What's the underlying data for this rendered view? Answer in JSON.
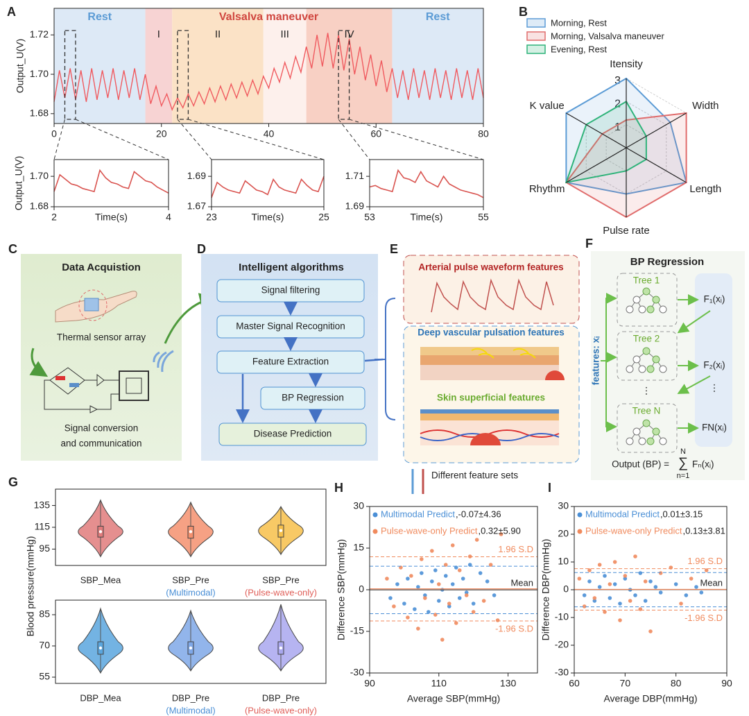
{
  "panel_labels": [
    "A",
    "B",
    "C",
    "D",
    "E",
    "F",
    "G",
    "H",
    "I"
  ],
  "chart_data": [
    {
      "type": "line",
      "ylabel": "Output_U(V)",
      "color": "#f05a5f",
      "x": [
        0,
        1,
        2,
        3,
        4,
        5,
        6,
        7,
        8,
        9,
        10,
        11,
        12,
        13,
        14,
        15,
        16,
        17,
        18,
        19,
        20,
        21,
        22,
        23,
        24,
        25,
        26,
        27,
        28,
        29,
        30,
        31,
        32,
        33,
        34,
        35,
        36,
        37,
        38,
        39,
        40,
        41,
        42,
        43,
        44,
        45,
        46,
        47,
        48,
        49,
        50,
        51,
        52,
        53,
        54,
        55,
        56,
        57,
        58,
        59,
        60,
        61,
        62,
        63,
        64,
        65,
        66,
        67,
        68,
        69,
        70,
        71,
        72,
        73,
        74,
        75,
        76,
        77,
        78,
        79,
        80
      ],
      "values": [
        1.686,
        1.702,
        1.688,
        1.703,
        1.687,
        1.702,
        1.686,
        1.703,
        1.687,
        1.702,
        1.688,
        1.703,
        1.687,
        1.702,
        1.688,
        1.703,
        1.687,
        1.7,
        1.685,
        1.694,
        1.684,
        1.69,
        1.682,
        1.688,
        1.683,
        1.69,
        1.684,
        1.691,
        1.685,
        1.693,
        1.686,
        1.694,
        1.687,
        1.695,
        1.688,
        1.696,
        1.689,
        1.697,
        1.69,
        1.699,
        1.693,
        1.703,
        1.696,
        1.706,
        1.698,
        1.709,
        1.701,
        1.714,
        1.703,
        1.72,
        1.704,
        1.721,
        1.703,
        1.72,
        1.702,
        1.718,
        1.7,
        1.714,
        1.697,
        1.71,
        1.694,
        1.707,
        1.691,
        1.703,
        1.688,
        1.702,
        1.687,
        1.703,
        1.688,
        1.702,
        1.687,
        1.703,
        1.688,
        1.702,
        1.687,
        1.703,
        1.688,
        1.702,
        1.687,
        1.703,
        1.688
      ],
      "xlim": [
        0,
        80
      ],
      "xticks": [
        0,
        20,
        40,
        60,
        80
      ],
      "ylim": [
        1.675,
        1.7335
      ],
      "yticks": [
        1.68,
        {
          "value": 1.7,
          "label": "1.70"
        },
        1.72
      ],
      "phases": [
        {
          "label": "Rest",
          "start": 0,
          "end": 17,
          "color": "#5b9bd5"
        },
        {
          "label": "Valsalva maneuver",
          "start": 17,
          "end": 63,
          "color": "#d0463f"
        },
        {
          "label": "Rest",
          "start": 63,
          "end": 80,
          "color": "#5b9bd5"
        }
      ],
      "regions": [
        {
          "start": 0,
          "end": 17,
          "color": "#dde9f6"
        },
        {
          "label": "I",
          "start": 17,
          "end": 22,
          "color": "#f7d3d3"
        },
        {
          "label": "II",
          "start": 22,
          "end": 39,
          "color": "#fbe2c6"
        },
        {
          "label": "III",
          "start": 39,
          "end": 47,
          "color": "#fdf0ec"
        },
        {
          "label": "IV",
          "start": 47,
          "end": 63,
          "color": "#f8d0c4"
        },
        {
          "start": 63,
          "end": 80,
          "color": "#dde9f6"
        }
      ]
    },
    {
      "type": "line",
      "ylabel": "Output_U(V)",
      "xlabel": "Time(s)",
      "color": "#d9534f",
      "x": [
        2.0,
        2.1,
        2.2,
        2.3,
        2.4,
        2.5,
        2.6,
        2.7,
        2.8,
        2.9,
        3.0,
        3.1,
        3.2,
        3.3,
        3.4,
        3.5,
        3.6,
        3.7,
        3.8,
        3.9,
        4.0
      ],
      "values": [
        1.69,
        1.701,
        1.698,
        1.695,
        1.694,
        1.692,
        1.691,
        1.69,
        1.704,
        1.699,
        1.696,
        1.695,
        1.693,
        1.692,
        1.703,
        1.7,
        1.697,
        1.696,
        1.693,
        1.691,
        1.689
      ],
      "xlim": [
        2,
        4
      ],
      "xticks": [
        2,
        4
      ],
      "ylim": [
        1.68,
        1.711
      ],
      "yticks": [
        1.68,
        {
          "value": 1.7,
          "label": "1.70"
        }
      ]
    },
    {
      "type": "line",
      "xlabel": "Time(s)",
      "color": "#d9534f",
      "x": [
        23.0,
        23.1,
        23.2,
        23.3,
        23.4,
        23.5,
        23.6,
        23.7,
        23.8,
        23.9,
        24.0,
        24.1,
        24.2,
        24.3,
        24.4,
        24.5,
        24.6,
        24.7,
        24.8,
        24.9,
        25.0
      ],
      "values": [
        1.676,
        1.686,
        1.683,
        1.681,
        1.68,
        1.679,
        1.687,
        1.684,
        1.681,
        1.68,
        1.678,
        1.688,
        1.683,
        1.681,
        1.68,
        1.679,
        1.688,
        1.684,
        1.681,
        1.68,
        1.69
      ],
      "xlim": [
        23,
        25
      ],
      "xticks": [
        23,
        25
      ],
      "ylim": [
        1.67,
        1.701
      ],
      "yticks": [
        1.67,
        1.69
      ]
    },
    {
      "type": "line",
      "xlabel": "Time(s)",
      "color": "#d9534f",
      "x": [
        53.0,
        53.1,
        53.2,
        53.3,
        53.4,
        53.5,
        53.6,
        53.7,
        53.8,
        53.9,
        54.0,
        54.1,
        54.2,
        54.3,
        54.4,
        54.5,
        54.6,
        54.7,
        54.8,
        54.9,
        55.0
      ],
      "values": [
        1.703,
        1.704,
        1.702,
        1.701,
        1.7,
        1.714,
        1.709,
        1.708,
        1.706,
        1.713,
        1.707,
        1.705,
        1.703,
        1.71,
        1.705,
        1.703,
        1.701,
        1.7,
        1.699,
        1.698,
        1.696
      ],
      "xlim": [
        53,
        55
      ],
      "xticks": [
        53,
        55
      ],
      "ylim": [
        1.69,
        1.721
      ],
      "yticks": [
        1.69,
        1.71
      ]
    },
    {
      "type": "radar",
      "axes": [
        "Itensity",
        "Width",
        "Length",
        "Pulse rate",
        "Rhythm",
        "K value"
      ],
      "rlim": [
        0,
        3
      ],
      "rticks": [
        1,
        2,
        3
      ],
      "series": [
        {
          "name": "Morning, Rest",
          "color": "#5b9bd5",
          "values": [
            3,
            2.2,
            3,
            2,
            3,
            3
          ]
        },
        {
          "name": "Morning, Valsalva maneuver",
          "color": "#e06c6c",
          "values": [
            1.2,
            3,
            3,
            3,
            3,
            1.2
          ]
        },
        {
          "name": "Evening, Rest",
          "color": "#2fb37a",
          "values": [
            2,
            1,
            1,
            1,
            3,
            2
          ]
        }
      ]
    },
    {
      "type": "violin",
      "ylabel": "Blood pressure(mmHg)",
      "categories": [
        "SBP_Mea",
        "SBP_Pre",
        "SBP_Pre"
      ],
      "subcategories": [
        null,
        "(Multimodal)",
        "(Pulse-wave-only)"
      ],
      "subcategory_colors": [
        null,
        "#4a8fd6",
        "#e0605a"
      ],
      "violins": [
        {
          "min": 88,
          "q1": 106,
          "median": 111,
          "q3": 116,
          "max": 140,
          "color": "#e07b7b"
        },
        {
          "min": 88,
          "q1": 105,
          "median": 111,
          "q3": 116,
          "max": 138,
          "color": "#f4906e"
        },
        {
          "min": 90,
          "q1": 106,
          "median": 112,
          "q3": 117,
          "max": 134,
          "color": "#f7c04a"
        }
      ],
      "ylim": [
        80,
        150
      ],
      "yticks": [
        95,
        115,
        135
      ]
    },
    {
      "type": "violin",
      "categories": [
        "DBP_Mea",
        "DBP_Pre",
        "DBP_Pre"
      ],
      "subcategories": [
        null,
        "(Multimodal)",
        "(Pulse-wave-only)"
      ],
      "subcategory_colors": [
        null,
        "#4a8fd6",
        "#e0605a"
      ],
      "violins": [
        {
          "min": 57,
          "q1": 66,
          "median": 69,
          "q3": 72,
          "max": 88,
          "color": "#5aa6de"
        },
        {
          "min": 58,
          "q1": 66,
          "median": 69,
          "q3": 72,
          "max": 87,
          "color": "#7fa8e8"
        },
        {
          "min": 58,
          "q1": 66,
          "median": 69,
          "q3": 72,
          "max": 90,
          "color": "#a9a7ee"
        }
      ],
      "ylim": [
        52,
        92
      ],
      "yticks": [
        55,
        70,
        85
      ]
    },
    {
      "type": "scatter",
      "xlabel": "Average SBP(mmHg)",
      "ylabel": "Difference SBP(mmHg)",
      "xlim": [
        90,
        138.5
      ],
      "xticks": [
        90,
        110,
        130
      ],
      "ylim": [
        -30,
        30
      ],
      "yticks": [
        -30,
        -15,
        0,
        15,
        30
      ],
      "line_labels": {
        "upper": "1.96 S.D",
        "mean": "Mean",
        "lower": "-1.96 S.D"
      },
      "series": [
        {
          "name": "Multimodal Predict",
          "stats": ",-0.07±4.36",
          "color": "#4a8fd6",
          "mean": -0.07,
          "upper": 8.48,
          "lower": -8.62,
          "x": [
            96,
            98,
            100,
            101,
            103,
            104,
            105,
            106,
            107,
            108,
            109,
            110,
            111,
            112,
            113,
            114,
            115,
            116,
            117,
            118,
            119,
            120,
            122,
            124,
            126
          ],
          "values": [
            -3,
            2,
            -5,
            4,
            -7,
            1,
            6,
            -2,
            -8,
            3,
            7,
            -4,
            0,
            5,
            -6,
            2,
            8,
            -3,
            4,
            -1,
            9,
            -5,
            6,
            3,
            -2
          ]
        },
        {
          "name": "Pulse-wave-only Predict",
          "stats": ",0.32±5.90",
          "color": "#f08a5d",
          "mean": 0.32,
          "upper": 11.88,
          "lower": -11.24,
          "x": [
            95,
            97,
            99,
            101,
            102,
            104,
            105,
            106,
            108,
            109,
            110,
            111,
            112,
            113,
            114,
            115,
            116,
            118,
            119,
            120,
            121,
            123,
            125,
            127,
            128
          ],
          "values": [
            4,
            -6,
            8,
            -10,
            5,
            -14,
            11,
            -3,
            14,
            -9,
            2,
            -18,
            9,
            -5,
            16,
            -12,
            7,
            -2,
            12,
            -8,
            18,
            -4,
            9,
            -11,
            20
          ]
        }
      ]
    },
    {
      "type": "scatter",
      "xlabel": "Average DBP(mmHg)",
      "ylabel": "Difference DBP(mmHg)",
      "xlim": [
        60,
        90
      ],
      "xticks": [
        60,
        70,
        80,
        90
      ],
      "ylim": [
        -30,
        30
      ],
      "yticks": [
        -30,
        -20,
        -10,
        0,
        10,
        20,
        30
      ],
      "line_labels": {
        "upper": "1.96 S.D",
        "mean": "Mean",
        "lower": "-1.96 S.D"
      },
      "series": [
        {
          "name": "Multimodal Predict",
          "stats": ",0.01±3.15",
          "color": "#4a8fd6",
          "mean": 0.01,
          "upper": 6.18,
          "lower": -6.16,
          "x": [
            62,
            63,
            64,
            65,
            66,
            67,
            68,
            69,
            70,
            71,
            72,
            73,
            74,
            75,
            76,
            77,
            80,
            82,
            84,
            85
          ],
          "values": [
            -2,
            3,
            -4,
            1,
            5,
            -3,
            2,
            -5,
            4,
            0,
            -2,
            6,
            -4,
            3,
            1,
            -1,
            2,
            -2,
            1,
            -1
          ]
        },
        {
          "name": "Pulse-wave-only Predict",
          "stats": ",0.13±3.81",
          "color": "#f08a5d",
          "mean": 0.13,
          "upper": 7.6,
          "lower": -7.34,
          "x": [
            61,
            62,
            63,
            64,
            65,
            66,
            67,
            68,
            69,
            70,
            71,
            72,
            73,
            74,
            75,
            77,
            79,
            81,
            83,
            86
          ],
          "values": [
            4,
            -6,
            7,
            -3,
            9,
            -8,
            2,
            10,
            -11,
            5,
            -4,
            12,
            -7,
            3,
            -15,
            6,
            8,
            -5,
            4,
            7
          ]
        }
      ]
    }
  ],
  "diagram": {
    "c": {
      "title": "Data Acquistion",
      "sensor": "Thermal sensor array",
      "signal_1": "Signal conversion",
      "signal_2": "and communication"
    },
    "d": {
      "title": "Intelligent algorithms",
      "steps": [
        "Signal filtering",
        "Master Signal Recognition",
        "Feature Extraction",
        "BP Regression",
        "Disease Prediction"
      ]
    },
    "e": {
      "arterial": "Arterial pulse waveform features",
      "deep": "Deep vascular pulsation features",
      "skin": "Skin superficial features",
      "sets": "Different feature sets"
    },
    "f": {
      "title": "BP Regression",
      "trees": [
        "Tree 1",
        "Tree 2",
        "Tree N"
      ],
      "outputs": [
        "F₁(xᵢ)",
        "F₂(xᵢ)",
        "FN(xᵢ)"
      ],
      "features": "features: xᵢ",
      "dots": "⋮",
      "output": "Output (BP) =",
      "sum": "∑",
      "sum_top": "N",
      "sum_bottom": "n=1",
      "term": "Fₙ(xᵢ)"
    }
  }
}
